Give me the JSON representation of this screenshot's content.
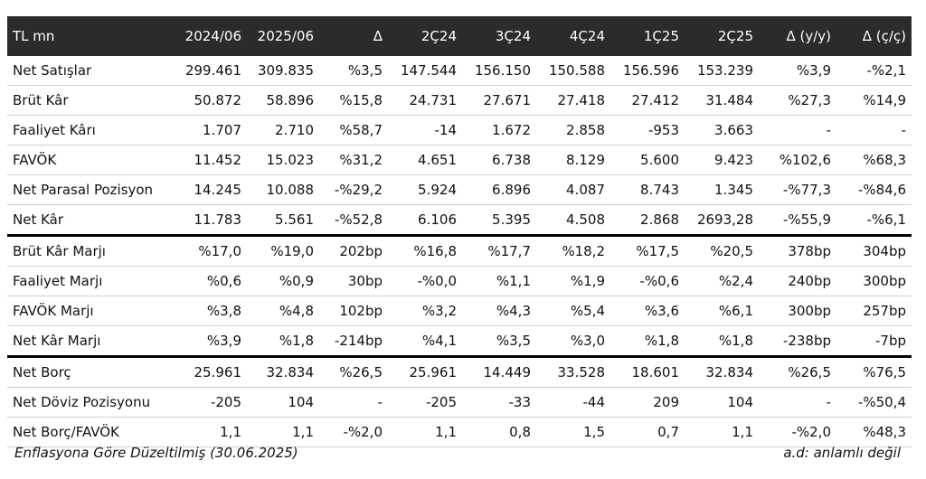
{
  "table": {
    "headers": [
      "TL mn",
      "2024/06",
      "2025/06",
      "Δ",
      "2Ç24",
      "3Ç24",
      "4Ç24",
      "1Ç25",
      "2Ç25",
      "Δ (y/y)",
      "Δ (ç/ç)"
    ],
    "rows": [
      [
        "Net Satışlar",
        "299.461",
        "309.835",
        "%3,5",
        "147.544",
        "156.150",
        "150.588",
        "156.596",
        "153.239",
        "%3,9",
        "-%2,1"
      ],
      [
        "Brüt Kâr",
        "50.872",
        "58.896",
        "%15,8",
        "24.731",
        "27.671",
        "27.418",
        "27.412",
        "31.484",
        "%27,3",
        "%14,9"
      ],
      [
        "Faaliyet Kârı",
        "1.707",
        "2.710",
        "%58,7",
        "-14",
        "1.672",
        "2.858",
        "-953",
        "3.663",
        "-",
        "-"
      ],
      [
        "FAVÖK",
        "11.452",
        "15.023",
        "%31,2",
        "4.651",
        "6.738",
        "8.129",
        "5.600",
        "9.423",
        "%102,6",
        "%68,3"
      ],
      [
        "Net Parasal Pozisyon",
        "14.245",
        "10.088",
        "-%29,2",
        "5.924",
        "6.896",
        "4.087",
        "8.743",
        "1.345",
        "-%77,3",
        "-%84,6"
      ],
      [
        "Net Kâr",
        "11.783",
        "5.561",
        "-%52,8",
        "6.106",
        "5.395",
        "4.508",
        "2.868",
        "2693,28",
        "-%55,9",
        "-%6,1"
      ],
      [
        "Brüt Kâr Marjı",
        "%17,0",
        "%19,0",
        "202bp",
        "%16,8",
        "%17,7",
        "%18,2",
        "%17,5",
        "%20,5",
        "378bp",
        "304bp"
      ],
      [
        "Faaliyet Marjı",
        "%0,6",
        "%0,9",
        "30bp",
        "-%0,0",
        "%1,1",
        "%1,9",
        "-%0,6",
        "%2,4",
        "240bp",
        "300bp"
      ],
      [
        "FAVÖK Marjı",
        "%3,8",
        "%4,8",
        "102bp",
        "%3,2",
        "%4,3",
        "%5,4",
        "%3,6",
        "%6,1",
        "300bp",
        "257bp"
      ],
      [
        "Net Kâr Marjı",
        "%3,9",
        "%1,8",
        "-214bp",
        "%4,1",
        "%3,5",
        "%3,0",
        "%1,8",
        "%1,8",
        "-238bp",
        "-7bp"
      ],
      [
        "Net Borç",
        "25.961",
        "32.834",
        "%26,5",
        "25.961",
        "14.449",
        "33.528",
        "18.601",
        "32.834",
        "%26,5",
        "%76,5"
      ],
      [
        "Net Döviz Pozisyonu",
        "-205",
        "104",
        "-",
        "-205",
        "-33",
        "-44",
        "209",
        "104",
        "-",
        "-%50,4"
      ],
      [
        "Net Borç/FAVÖK",
        "1,1",
        "1,1",
        "-%2,0",
        "1,1",
        "0,8",
        "1,5",
        "0,7",
        "1,1",
        "-%2,0",
        "%48,3"
      ]
    ]
  },
  "footer": {
    "left": "Enflasyona Göre Düzeltilmiş (30.06.2025)",
    "right": "a.d: anlamlı değil"
  }
}
